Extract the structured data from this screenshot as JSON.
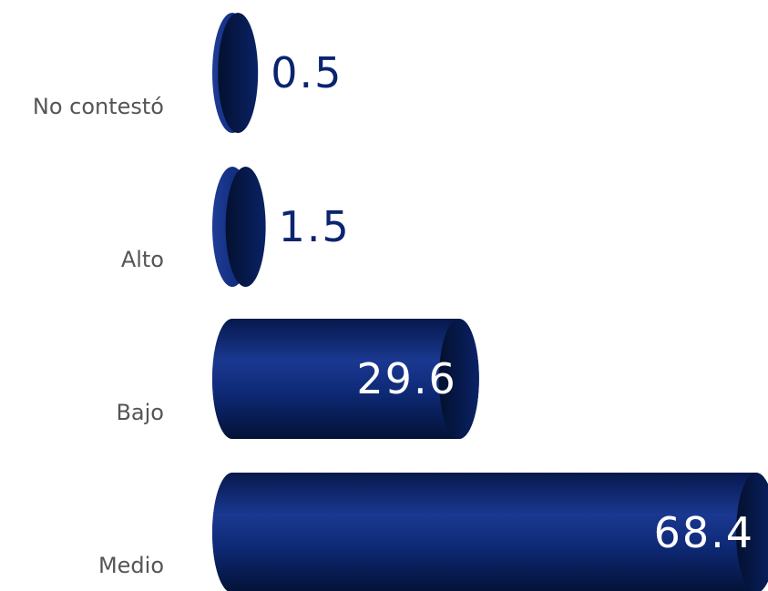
{
  "chart_data": {
    "type": "bar",
    "orientation": "horizontal",
    "categories": [
      "No contestó",
      "Alto",
      "Bajo",
      "Medio"
    ],
    "values": [
      0.5,
      1.5,
      29.6,
      68.4
    ],
    "value_labels": [
      "0.5",
      "1.5",
      "29.6",
      "68.4"
    ],
    "xlim": [
      0,
      68.4
    ],
    "grid": false,
    "legend": "none",
    "style": "3d-cylinder"
  },
  "colors": {
    "bar_body": "#0a2470",
    "bar_dark": "#041640",
    "bar_light": "#2a4aa0",
    "label_text": "#555555",
    "value_outside": "#0a2470",
    "value_inside": "#ffffff"
  }
}
